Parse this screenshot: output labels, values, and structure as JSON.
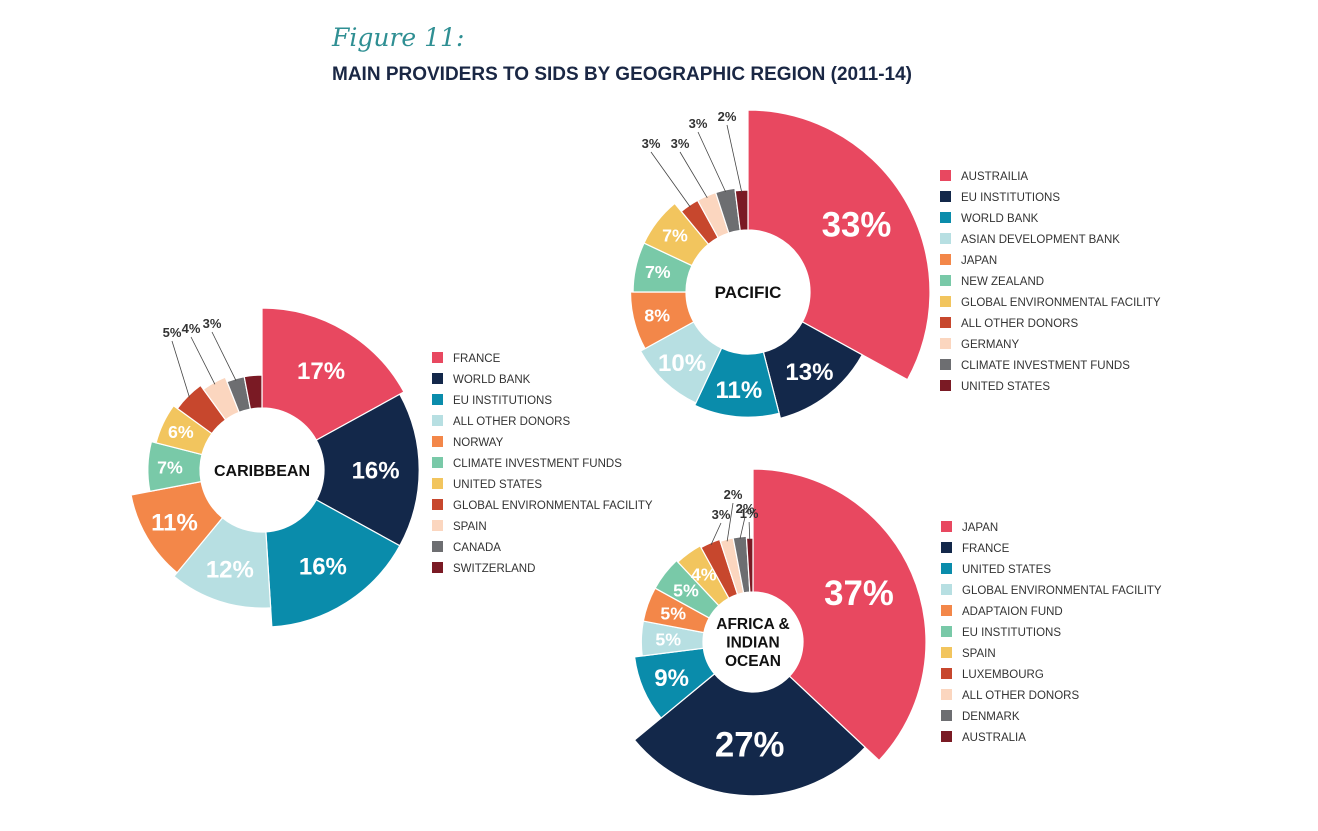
{
  "figure": {
    "label": "Figure 11:",
    "title": "MAIN PROVIDERS TO SIDS BY GEOGRAPHIC REGION (2011-14)"
  },
  "chart_data": [
    {
      "type": "pie",
      "region": "CARIBBEAN",
      "center_lines": [
        "CARIBBEAN"
      ],
      "slices": [
        {
          "label": "FRANCE",
          "value": 17,
          "display": "17%",
          "color": "#e84860"
        },
        {
          "label": "WORLD BANK",
          "value": 16,
          "display": "16%",
          "color": "#13284a"
        },
        {
          "label": "EU INSTITUTIONS",
          "value": 16,
          "display": "16%",
          "color": "#0a8cab"
        },
        {
          "label": "ALL OTHER DONORS",
          "value": 12,
          "display": "12%",
          "color": "#b7dfe2"
        },
        {
          "label": "NORWAY",
          "value": 11,
          "display": "11%",
          "color": "#f38749"
        },
        {
          "label": "CLIMATE INVESTMENT FUNDS",
          "value": 7,
          "display": "7%",
          "color": "#79c9a8"
        },
        {
          "label": "UNITED STATES",
          "value": 6,
          "display": "6%",
          "color": "#f2c55e"
        },
        {
          "label": "GLOBAL ENVIRONMENTAL FACILITY",
          "value": 5,
          "display": "5%",
          "color": "#c7472d"
        },
        {
          "label": "SPAIN",
          "value": 4,
          "display": "4%",
          "color": "#fbd6bf"
        },
        {
          "label": "CANADA",
          "value": 3,
          "display": "3%",
          "color": "#6d6e71"
        },
        {
          "label": "SWITZERLAND",
          "value": 3,
          "display": "",
          "color": "#7a1a24"
        }
      ]
    },
    {
      "type": "pie",
      "region": "PACIFIC",
      "center_lines": [
        "PACIFIC"
      ],
      "slices": [
        {
          "label": "AUSTRAILIA",
          "value": 33,
          "display": "33%",
          "color": "#e84860"
        },
        {
          "label": "EU INSTITUTIONS",
          "value": 13,
          "display": "13%",
          "color": "#13284a"
        },
        {
          "label": "WORLD BANK",
          "value": 11,
          "display": "11%",
          "color": "#0a8cab"
        },
        {
          "label": "ASIAN DEVELOPMENT BANK",
          "value": 10,
          "display": "10%",
          "color": "#b7dfe2"
        },
        {
          "label": "JAPAN",
          "value": 8,
          "display": "8%",
          "color": "#f38749"
        },
        {
          "label": "NEW ZEALAND",
          "value": 7,
          "display": "7%",
          "color": "#79c9a8"
        },
        {
          "label": "GLOBAL ENVIRONMENTAL FACILITY",
          "value": 7,
          "display": "7%",
          "color": "#f2c55e"
        },
        {
          "label": "ALL OTHER DONORS",
          "value": 3,
          "display": "3%",
          "color": "#c7472d"
        },
        {
          "label": "GERMANY",
          "value": 3,
          "display": "3%",
          "color": "#fbd6bf"
        },
        {
          "label": "CLIMATE INVESTMENT FUNDS",
          "value": 3,
          "display": "3%",
          "color": "#6d6e71"
        },
        {
          "label": "UNITED STATES",
          "value": 2,
          "display": "2%",
          "color": "#7a1a24"
        }
      ]
    },
    {
      "type": "pie",
      "region": "AFRICA & INDIAN OCEAN",
      "center_lines": [
        "AFRICA &",
        "INDIAN",
        "OCEAN"
      ],
      "slices": [
        {
          "label": "JAPAN",
          "value": 37,
          "display": "37%",
          "color": "#e84860"
        },
        {
          "label": "FRANCE",
          "value": 27,
          "display": "27%",
          "color": "#13284a"
        },
        {
          "label": "UNITED STATES",
          "value": 9,
          "display": "9%",
          "color": "#0a8cab"
        },
        {
          "label": "GLOBAL ENVIRONMENTAL FACILITY",
          "value": 5,
          "display": "5%",
          "color": "#b7dfe2"
        },
        {
          "label": "ADAPTAION FUND",
          "value": 5,
          "display": "5%",
          "color": "#f38749"
        },
        {
          "label": "EU INSTITUTIONS",
          "value": 5,
          "display": "5%",
          "color": "#79c9a8"
        },
        {
          "label": "SPAIN",
          "value": 4,
          "display": "4%",
          "color": "#f2c55e"
        },
        {
          "label": "LUXEMBOURG",
          "value": 3,
          "display": "3%",
          "color": "#c7472d"
        },
        {
          "label": "ALL OTHER DONORS",
          "value": 2,
          "display": "2%",
          "color": "#fbd6bf"
        },
        {
          "label": "DENMARK",
          "value": 2,
          "display": "2%",
          "color": "#6d6e71"
        },
        {
          "label": "AUSTRALIA",
          "value": 1,
          "display": "1%",
          "color": "#7a1a24"
        }
      ]
    }
  ]
}
